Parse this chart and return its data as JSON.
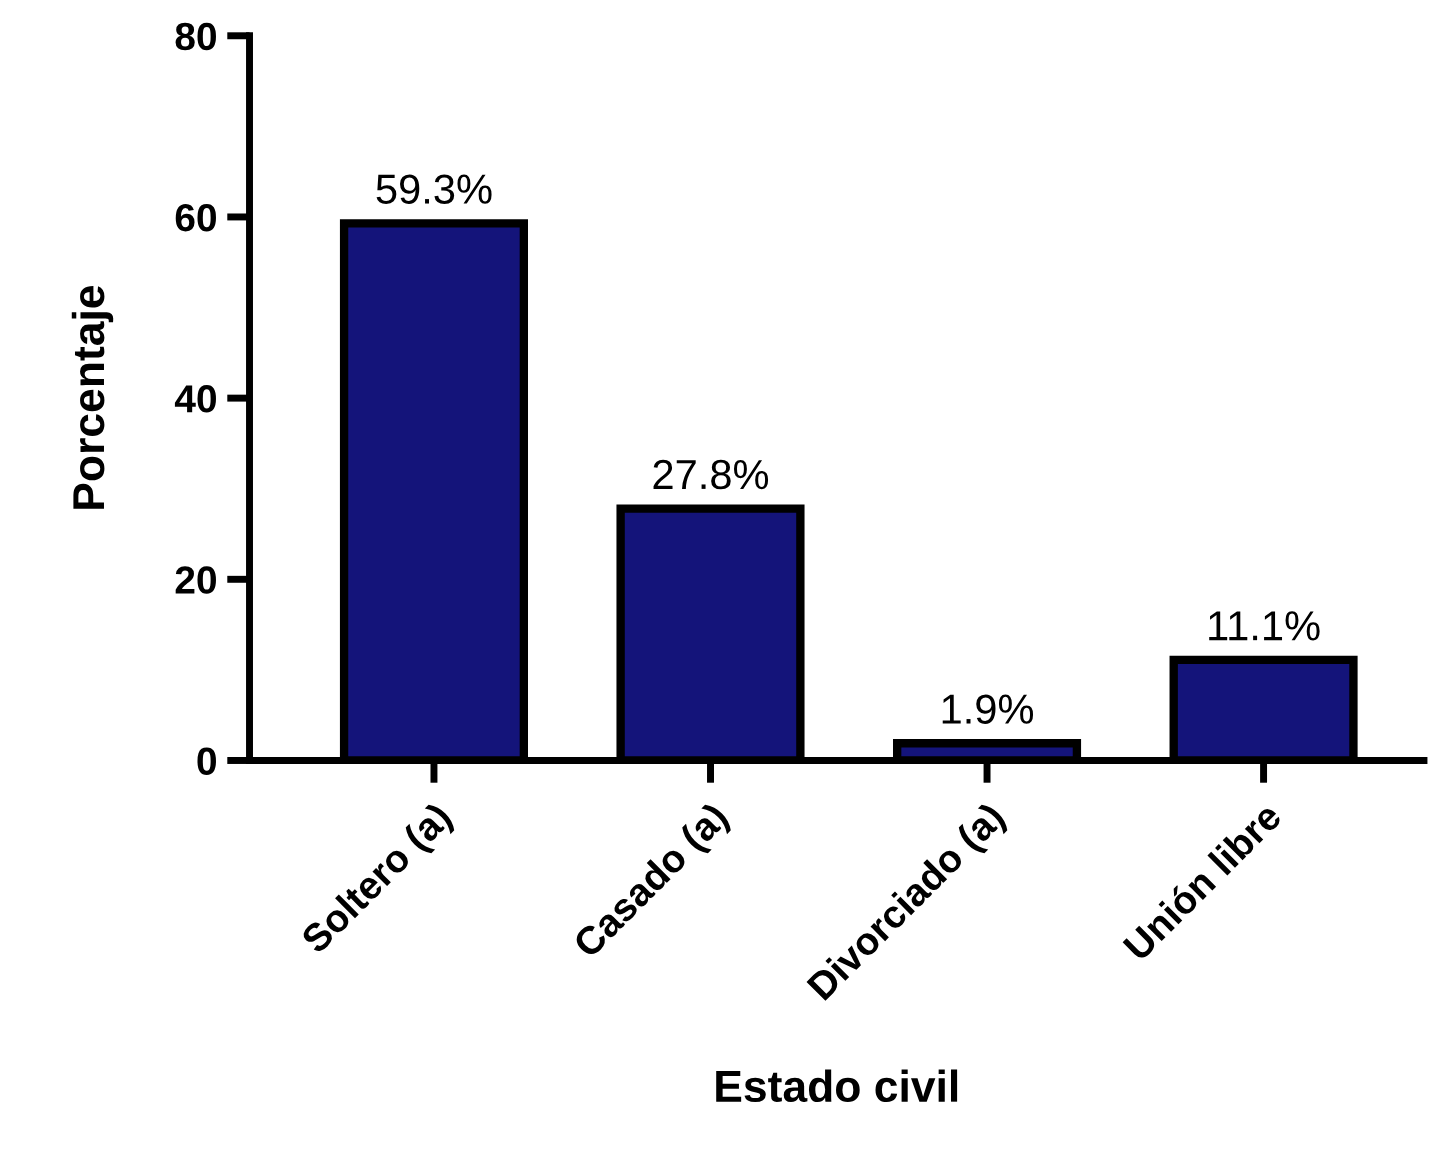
{
  "chart_data": {
    "type": "bar",
    "xlabel": "Estado civil",
    "ylabel": "Porcentaje",
    "categories": [
      "Soltero (a)",
      "Casado (a)",
      "Divorciado (a)",
      "Unión libre"
    ],
    "values": [
      59.3,
      27.8,
      1.9,
      11.1
    ],
    "value_labels": [
      "59.3%",
      "27.8%",
      "1.9%",
      "11.1%"
    ],
    "color": "#14147a",
    "ylim": [
      0,
      80
    ],
    "yticks": [
      0,
      20,
      40,
      60,
      80
    ],
    "grid": false
  }
}
